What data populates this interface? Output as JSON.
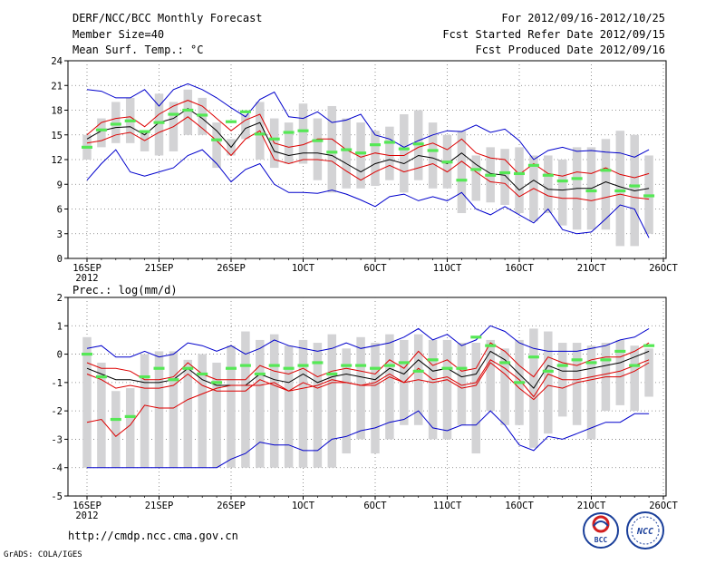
{
  "header": {
    "title": "DERF/NCC/BCC Monthly Forecast",
    "member_size": "Member Size=40",
    "variable": "Mean Surf. Temp.: °C",
    "period": "For 2012/09/16-2012/10/25",
    "fcst_started": "Fcst Started Refer Date 2012/09/15",
    "fcst_produced": "Fcst Produced Date 2012/09/16"
  },
  "footer": {
    "url": "http://cmdp.ncc.cma.gov.cn",
    "grads": "GrADS: COLA/IGES",
    "logo_bcc": "BCC",
    "logo_ncc": "NCC"
  },
  "colors": {
    "bar": "#d3d3d5",
    "members_mean": "#55e855",
    "ensemble_mean": "#000000",
    "spread": "#dd0000",
    "extreme": "#0000cc"
  },
  "chart_data": [
    {
      "type": "line",
      "title": "Mean Surf. Temp.: °C",
      "x_ticks": [
        "16SEP\n2012",
        "21SEP",
        "26SEP",
        "1OCT",
        "6OCT",
        "11OCT",
        "16OCT",
        "21OCT",
        "26OCT"
      ],
      "ylim": [
        0,
        24
      ],
      "y_ticks": [
        0,
        3,
        6,
        9,
        12,
        15,
        18,
        21,
        24
      ],
      "grid": true,
      "days": 40,
      "series": [
        {
          "name": "max",
          "values": [
            20.5,
            20.3,
            19.5,
            19.5,
            20.5,
            18.5,
            20.5,
            21.2,
            20.5,
            19.5,
            18.3,
            17.2,
            19.3,
            20.2,
            17.2,
            17.0,
            17.8,
            16.5,
            16.8,
            17.5,
            15.0,
            14.5,
            13.5,
            14.3,
            15.0,
            15.5,
            15.4,
            16.2,
            15.3,
            15.7,
            14.3,
            12.0,
            13.1,
            13.5,
            13.0,
            13.1,
            12.9,
            12.8,
            12.3,
            13.2
          ]
        },
        {
          "name": "min",
          "values": [
            9.5,
            11.5,
            13.2,
            10.5,
            10.0,
            10.5,
            11.0,
            12.5,
            13.2,
            11.5,
            9.3,
            10.8,
            11.5,
            9.0,
            8.0,
            8.0,
            7.9,
            8.3,
            7.8,
            7.1,
            6.3,
            7.5,
            7.8,
            7.0,
            7.5,
            7.0,
            8.0,
            6.0,
            5.3,
            6.3,
            5.3,
            4.3,
            6.0,
            3.5,
            3.0,
            3.2,
            4.8,
            6.5,
            6.0,
            2.5
          ]
        },
        {
          "name": "upper",
          "values": [
            15.0,
            16.5,
            17.0,
            17.2,
            16.0,
            17.5,
            18.5,
            19.2,
            18.5,
            17.0,
            15.5,
            16.8,
            17.5,
            14.0,
            13.5,
            13.8,
            14.5,
            14.5,
            13.2,
            12.3,
            12.8,
            12.5,
            12.5,
            13.5,
            14.0,
            13.2,
            14.5,
            12.8,
            12.2,
            12.0,
            10.2,
            11.5,
            10.3,
            10.0,
            10.5,
            10.3,
            11.0,
            10.2,
            9.8,
            10.3
          ]
        },
        {
          "name": "ensemble_mean",
          "values": [
            14.5,
            15.5,
            15.9,
            16.0,
            15.0,
            16.5,
            17.0,
            18.2,
            17.0,
            15.5,
            13.5,
            15.8,
            16.5,
            13.0,
            12.5,
            12.8,
            12.8,
            12.5,
            11.5,
            10.5,
            11.5,
            12.0,
            11.5,
            12.5,
            12.2,
            11.5,
            12.8,
            11.4,
            10.3,
            10.1,
            8.3,
            9.5,
            8.4,
            8.3,
            8.5,
            8.5,
            9.3,
            8.7,
            8.2,
            8.5
          ]
        },
        {
          "name": "lower",
          "values": [
            14.0,
            14.3,
            15.0,
            15.3,
            14.3,
            15.3,
            16.0,
            17.2,
            15.8,
            14.3,
            12.5,
            14.5,
            15.5,
            12.0,
            11.5,
            12.0,
            12.0,
            11.8,
            10.6,
            9.5,
            10.5,
            11.3,
            10.5,
            11.0,
            11.5,
            10.5,
            11.8,
            10.5,
            9.3,
            9.1,
            7.5,
            8.5,
            7.6,
            7.3,
            7.3,
            7.0,
            7.4,
            7.8,
            7.4,
            7.2
          ]
        },
        {
          "name": "members_mean",
          "values": [
            13.5,
            15.6,
            16.3,
            16.7,
            15.4,
            16.5,
            17.5,
            18.0,
            17.4,
            14.4,
            16.6,
            17.8,
            15.1,
            14.5,
            15.3,
            15.5,
            14.3,
            12.9,
            13.2,
            12.8,
            13.8,
            14.1,
            13.3,
            13.9,
            13.1,
            11.7,
            9.5,
            10.8,
            10.1,
            10.4,
            10.3,
            11.3,
            10.1,
            9.4,
            9.7,
            8.2,
            10.7,
            8.2,
            8.8,
            7.6
          ]
        }
      ],
      "bars": {
        "top": [
          15.0,
          17.0,
          19.0,
          19.5,
          15.5,
          20.0,
          19.0,
          20.5,
          19.5,
          16.5,
          14.5,
          17.5,
          19.0,
          17.0,
          16.5,
          18.8,
          17.0,
          18.5,
          17.0,
          16.5,
          15.5,
          16.0,
          17.5,
          18.0,
          16.5,
          15.0,
          15.5,
          12.5,
          13.5,
          13.3,
          13.5,
          12.5,
          12.5,
          12.0,
          13.5,
          13.5,
          14.5,
          15.5,
          15.0,
          12.5
        ],
        "bottom": [
          12.0,
          13.5,
          14.0,
          14.0,
          13.0,
          12.5,
          13.0,
          15.0,
          15.0,
          11.0,
          12.5,
          14.5,
          12.0,
          11.0,
          11.5,
          11.5,
          9.5,
          8.0,
          8.5,
          8.5,
          8.8,
          9.5,
          8.0,
          9.5,
          8.5,
          8.5,
          5.5,
          7.0,
          6.8,
          6.5,
          5.5,
          4.5,
          5.5,
          4.0,
          3.5,
          3.5,
          3.5,
          1.5,
          1.5,
          3.0
        ]
      }
    },
    {
      "type": "line",
      "title": "Prec.: log(mm/d)",
      "x_ticks": [
        "16SEP\n2012",
        "21SEP",
        "26SEP",
        "1OCT",
        "6OCT",
        "11OCT",
        "16OCT",
        "21OCT",
        "26OCT"
      ],
      "ylim": [
        -5,
        2
      ],
      "y_ticks": [
        -5,
        -4,
        -3,
        -2,
        -1,
        0,
        1,
        2
      ],
      "grid": true,
      "days": 40,
      "series": [
        {
          "name": "max",
          "values": [
            0.2,
            0.3,
            -0.1,
            -0.1,
            0.1,
            -0.1,
            0.0,
            0.4,
            0.3,
            0.1,
            0.3,
            0.0,
            0.2,
            0.5,
            0.3,
            0.2,
            0.1,
            0.2,
            0.4,
            0.2,
            0.3,
            0.4,
            0.6,
            0.9,
            0.5,
            0.7,
            0.3,
            0.5,
            1.0,
            0.8,
            0.4,
            0.2,
            0.1,
            0.1,
            0.1,
            0.2,
            0.3,
            0.5,
            0.6,
            0.9
          ]
        },
        {
          "name": "upper",
          "values": [
            -0.3,
            -0.5,
            -0.5,
            -0.6,
            -0.9,
            -0.9,
            -0.8,
            -0.3,
            -0.7,
            -0.9,
            -0.9,
            -0.9,
            -0.4,
            -0.6,
            -0.7,
            -0.5,
            -0.8,
            -0.6,
            -0.5,
            -0.6,
            -0.7,
            -0.2,
            -0.5,
            0.1,
            -0.4,
            -0.2,
            -0.6,
            -0.5,
            0.4,
            0.1,
            -0.4,
            -0.8,
            -0.1,
            -0.3,
            -0.4,
            -0.2,
            -0.1,
            -0.1,
            0.1,
            0.4
          ]
        },
        {
          "name": "ensemble_mean",
          "values": [
            -0.5,
            -0.7,
            -0.9,
            -0.9,
            -1.0,
            -1.0,
            -0.9,
            -0.5,
            -0.9,
            -1.1,
            -1.1,
            -1.1,
            -0.7,
            -0.9,
            -1.0,
            -0.7,
            -1.0,
            -0.8,
            -0.7,
            -0.8,
            -0.9,
            -0.5,
            -0.7,
            -0.2,
            -0.6,
            -0.5,
            -0.8,
            -0.7,
            0.1,
            -0.2,
            -0.7,
            -1.2,
            -0.4,
            -0.6,
            -0.6,
            -0.5,
            -0.4,
            -0.3,
            -0.1,
            0.1
          ]
        },
        {
          "name": "lower",
          "values": [
            -0.7,
            -0.9,
            -1.2,
            -1.1,
            -1.2,
            -1.2,
            -1.1,
            -0.7,
            -1.1,
            -1.3,
            -1.3,
            -1.3,
            -0.9,
            -1.1,
            -1.3,
            -1.0,
            -1.2,
            -1.0,
            -1.0,
            -1.1,
            -1.1,
            -0.8,
            -1.0,
            -0.5,
            -0.9,
            -0.8,
            -1.1,
            -1.0,
            -0.2,
            -0.5,
            -0.9,
            -1.5,
            -0.7,
            -0.9,
            -0.9,
            -0.8,
            -0.7,
            -0.6,
            -0.4,
            -0.2
          ]
        },
        {
          "name": "lower2",
          "values": [
            -2.4,
            -2.3,
            -2.9,
            -2.5,
            -1.8,
            -1.9,
            -1.9,
            -1.6,
            -1.4,
            -1.2,
            -1.1,
            -1.1,
            -1.1,
            -1.0,
            -1.3,
            -1.2,
            -1.1,
            -0.9,
            -1.0,
            -1.1,
            -1.0,
            -0.7,
            -1.0,
            -0.9,
            -1.0,
            -0.9,
            -1.2,
            -1.1,
            -0.3,
            -0.7,
            -1.2,
            -1.6,
            -1.1,
            -1.2,
            -1.0,
            -0.9,
            -0.8,
            -0.8,
            -0.6,
            -0.3
          ]
        },
        {
          "name": "lowest",
          "values": [
            -4.0,
            -4.0,
            -4.0,
            -4.0,
            -4.0,
            -4.0,
            -4.0,
            -4.0,
            -4.0,
            -4.0,
            -3.7,
            -3.5,
            -3.1,
            -3.2,
            -3.2,
            -3.4,
            -3.4,
            -3.0,
            -2.9,
            -2.7,
            -2.6,
            -2.4,
            -2.3,
            -2.0,
            -2.6,
            -2.7,
            -2.5,
            -2.5,
            -2.0,
            -2.5,
            -3.2,
            -3.4,
            -2.9,
            -3.0,
            -2.8,
            -2.6,
            -2.4,
            -2.4,
            -2.1,
            -2.1
          ]
        },
        {
          "name": "members_mean",
          "values": [
            0.0,
            -0.8,
            -2.3,
            -2.2,
            -0.8,
            -0.5,
            -0.9,
            -0.5,
            -0.7,
            -1.0,
            -0.5,
            -0.4,
            -0.7,
            -0.4,
            -0.5,
            -0.4,
            -0.3,
            -0.7,
            -0.4,
            -0.4,
            -0.5,
            -0.4,
            -0.3,
            -0.6,
            -0.2,
            -0.5,
            -0.5,
            0.6,
            0.3,
            -0.3,
            -1.0,
            -0.1,
            -0.6,
            -0.4,
            -0.2,
            -0.3,
            -0.2,
            0.1,
            -0.4,
            0.3
          ]
        }
      ],
      "bars": {
        "top": [
          0.6,
          -0.3,
          -1.3,
          -1.2,
          0.0,
          0.1,
          0.1,
          -0.2,
          0.0,
          -0.3,
          0.3,
          0.8,
          0.5,
          0.7,
          0.3,
          0.5,
          0.4,
          0.7,
          0.2,
          0.6,
          0.4,
          0.7,
          0.5,
          0.7,
          0.5,
          0.5,
          0.4,
          0.4,
          0.5,
          0.2,
          0.5,
          0.9,
          0.8,
          0.4,
          0.4,
          0.3,
          0.4,
          0.5,
          0.3,
          0.2
        ],
        "bottom": [
          -4.0,
          -4.0,
          -4.0,
          -4.0,
          -4.0,
          -4.0,
          -4.0,
          -4.0,
          -4.0,
          -4.0,
          -4.0,
          -4.0,
          -4.0,
          -4.0,
          -4.0,
          -4.0,
          -4.0,
          -4.0,
          -3.5,
          -3.0,
          -3.5,
          -3.0,
          -2.5,
          -2.5,
          -3.0,
          -3.0,
          -2.5,
          -3.5,
          -2.0,
          -2.5,
          -2.5,
          -3.3,
          -2.8,
          -2.2,
          -2.5,
          -3.0,
          -2.0,
          -1.8,
          -2.0,
          -1.5
        ]
      }
    }
  ]
}
